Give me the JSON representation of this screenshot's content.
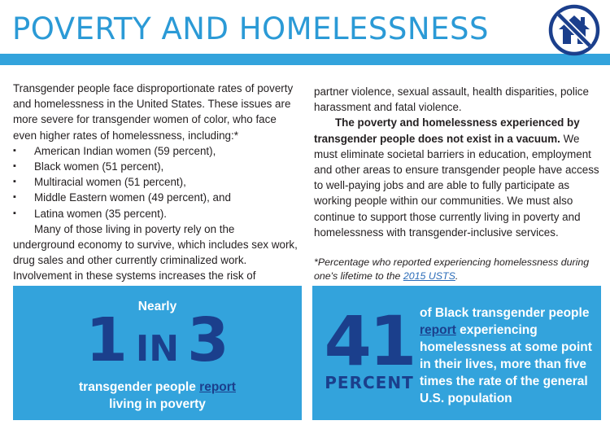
{
  "header": {
    "title": "POVERTY AND HOMELESSNESS",
    "icon": "no-house-icon"
  },
  "left_column": {
    "intro": "Transgender people face disproportionate rates of poverty and homelessness in the United States. These issues are more severe for transgender women of color, who face even higher rates of homelessness, including:*",
    "bullets": [
      "American Indian women (59 percent),",
      "Black women (51 percent),",
      "Multiracial women (51 percent),",
      "Middle Eastern women (49 percent), and",
      "Latina women (35 percent)."
    ],
    "para2": "Many of those living in poverty rely on the underground economy to survive, which includes sex work, drug sales and other currently criminalized work. Involvement in these systems increases the risk of violence, including intimate"
  },
  "right_column": {
    "continued": "partner violence, sexual assault, health disparities, police harassment and fatal violence.",
    "bold_lead": "The poverty and homelessness experienced by transgender people does not exist in a vacuum.",
    "para": " We must eliminate societal barriers in education, employment and other areas to ensure transgender people have access to well-paying jobs and are able to fully participate as working people within our communities. We must also continue to support those currently living in poverty and homelessness with transgender-inclusive services.",
    "footnote_prefix": "*Percentage who reported experiencing homelessness during one's lifetime to the ",
    "footnote_link": "2015 USTS",
    "footnote_suffix": "."
  },
  "stat_left": {
    "top": "Nearly",
    "num1": "1",
    "word": "IN",
    "num2": "3",
    "bottom_prefix": "transgender people ",
    "bottom_link": "report",
    "bottom_suffix": "living in poverty"
  },
  "stat_right": {
    "number": "41",
    "unit": "PERCENT",
    "text_prefix": "of Black transgender people ",
    "text_link": "report",
    "text_suffix": " experiencing homelessness at some point in their lives, more than five times the rate of the general U.S. population"
  },
  "colors": {
    "accent": "#33a3dc",
    "title": "#2b9ad6",
    "navy": "#1b3f8c",
    "text": "#231f20"
  }
}
